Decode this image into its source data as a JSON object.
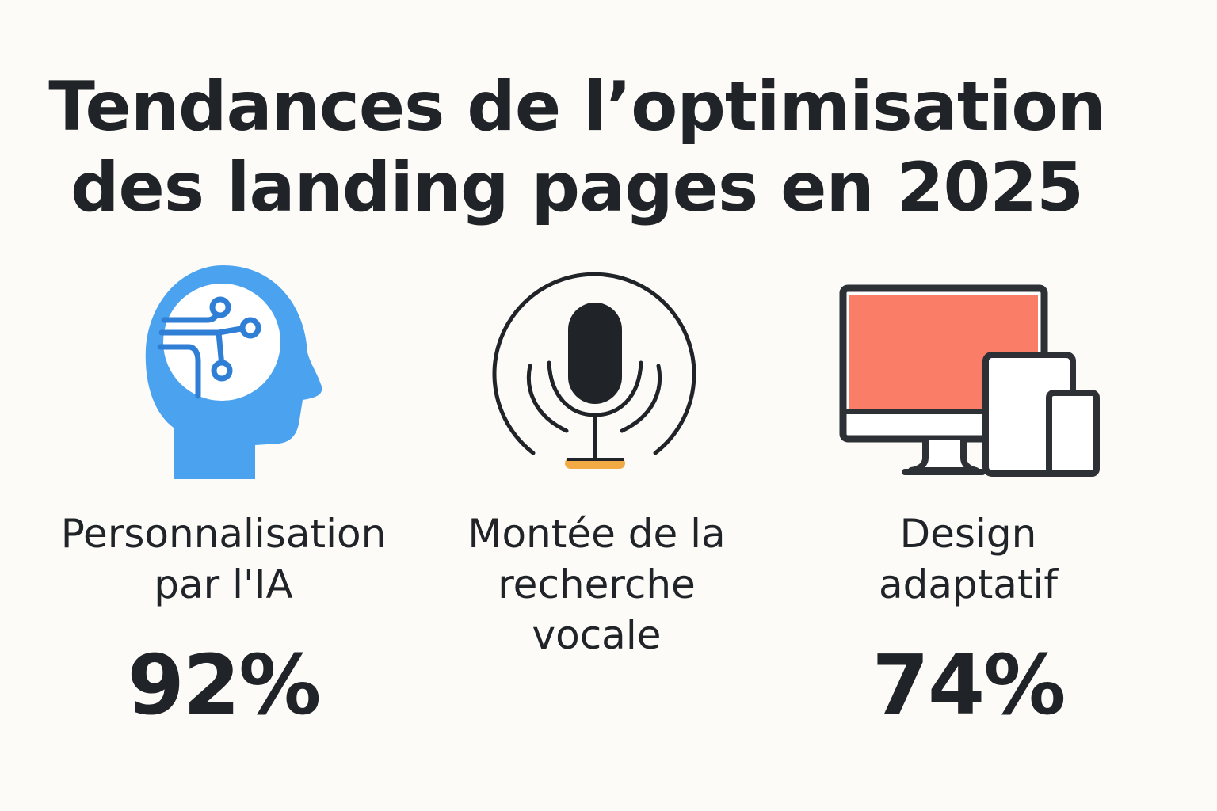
{
  "title": {
    "line1": "Tendances de l’optimisation",
    "line2": "des landing pages en 2025"
  },
  "items": [
    {
      "icon": "ai-head-icon",
      "label_line1": "Personnalisation",
      "label_line2": "par l'IA",
      "stat": "92%"
    },
    {
      "icon": "microphone-icon",
      "label_line1": "Montée de la",
      "label_line2": "recherche",
      "label_line3": "vocale",
      "stat": ""
    },
    {
      "icon": "responsive-devices-icon",
      "label_line1": "Design",
      "label_line2": "adaptatif",
      "stat": "74%"
    }
  ],
  "colors": {
    "background": "#fcfbf7",
    "text": "#202327",
    "head_blue": "#4ba3f0",
    "circuit_blue": "#2f7fd6",
    "screen_coral": "#fa7d67",
    "mic_base_orange": "#f2aa45"
  }
}
